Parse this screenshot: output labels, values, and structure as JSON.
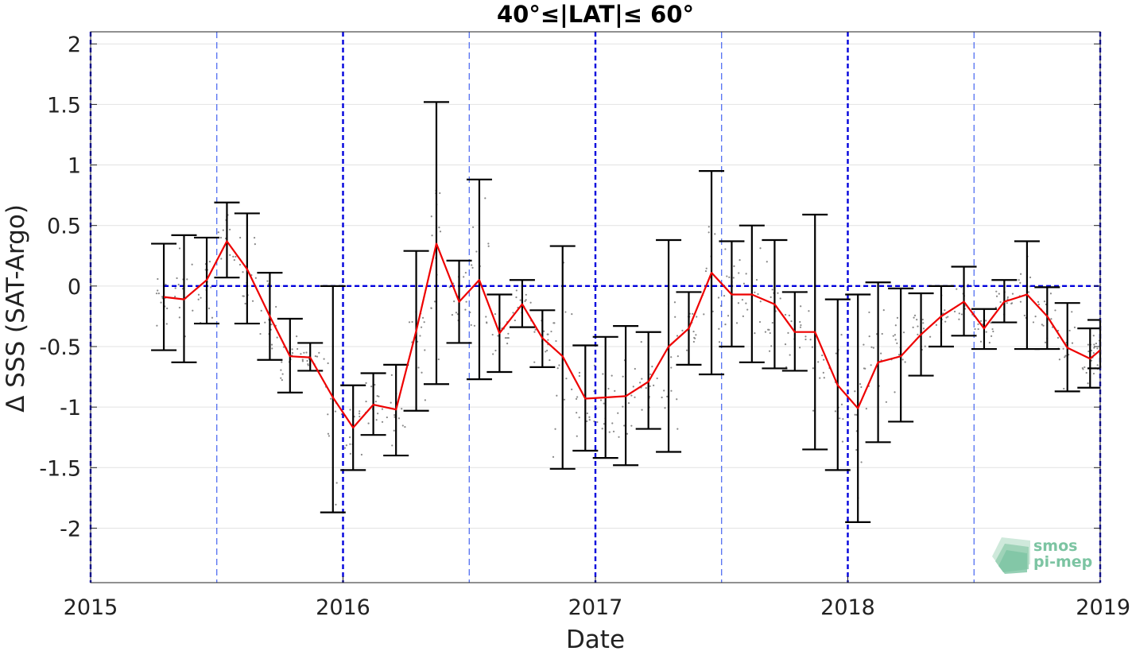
{
  "chart_data": {
    "type": "line",
    "title": "40°≤|LAT|≤ 60°",
    "xlabel": "Date",
    "ylabel": "Δ SSS (SAT-Argo)",
    "xlim": [
      2015.0,
      2019.0
    ],
    "ylim": [
      -2.45,
      2.1
    ],
    "x_ticks": [
      2015,
      2016,
      2017,
      2018,
      2019
    ],
    "x_tick_labels": [
      "2015",
      "2016",
      "2017",
      "2018",
      "2019"
    ],
    "y_ticks": [
      -2,
      -1.5,
      -1,
      -0.5,
      0,
      0.5,
      1,
      1.5,
      2
    ],
    "y_tick_labels": [
      "-2",
      "-1.5",
      "-1",
      "-0.5",
      "0",
      "0.5",
      "1",
      "1.5",
      "2"
    ],
    "grid": "horizontal",
    "reference_line": {
      "y": 0,
      "color": "#0000dd",
      "style": "dashed"
    },
    "year_lines": {
      "major": [
        2015,
        2016,
        2017,
        2018,
        2019
      ],
      "minor": [
        2015.5,
        2016.5,
        2017.5,
        2018.5
      ],
      "color": "#0000dd"
    },
    "series": [
      {
        "color": "#ee0000",
        "x": [
          2015.29,
          2015.37,
          2015.46,
          2015.54,
          2015.62,
          2015.71,
          2015.79,
          2015.87,
          2015.96,
          2016.04,
          2016.12,
          2016.21,
          2016.29,
          2016.37,
          2016.46,
          2016.54,
          2016.62,
          2016.71,
          2016.79,
          2016.87,
          2016.96,
          2017.04,
          2017.12,
          2017.21,
          2017.29,
          2017.37,
          2017.46,
          2017.54,
          2017.62,
          2017.71,
          2017.79,
          2017.87,
          2017.96,
          2018.04,
          2018.12,
          2018.21,
          2018.29,
          2018.37,
          2018.46,
          2018.54,
          2018.62,
          2018.71,
          2018.79,
          2018.87,
          2018.96,
          2019.0
        ],
        "values": [
          -0.09,
          -0.11,
          0.05,
          0.37,
          0.14,
          -0.25,
          -0.58,
          -0.59,
          -0.92,
          -1.17,
          -0.98,
          -1.02,
          -0.37,
          0.35,
          -0.13,
          0.05,
          -0.39,
          -0.15,
          -0.43,
          -0.58,
          -0.93,
          -0.92,
          -0.91,
          -0.79,
          -0.5,
          -0.35,
          0.11,
          -0.07,
          -0.07,
          -0.15,
          -0.38,
          -0.38,
          -0.82,
          -1.01,
          -0.63,
          -0.58,
          -0.4,
          -0.25,
          -0.13,
          -0.35,
          -0.13,
          -0.07,
          -0.25,
          -0.51,
          -0.6,
          -0.53
        ],
        "error_low": [
          -0.53,
          -0.63,
          -0.31,
          0.07,
          -0.31,
          -0.61,
          -0.88,
          -0.7,
          -1.87,
          -1.52,
          -1.23,
          -1.4,
          -1.03,
          -0.81,
          -0.47,
          -0.77,
          -0.71,
          -0.34,
          -0.67,
          -1.51,
          -1.36,
          -1.42,
          -1.48,
          -1.18,
          -1.37,
          -0.65,
          -0.73,
          -0.5,
          -0.63,
          -0.68,
          -0.7,
          -1.35,
          -1.52,
          -1.95,
          -1.29,
          -1.12,
          -0.74,
          -0.5,
          -0.41,
          -0.52,
          -0.3,
          -0.52,
          -0.52,
          -0.87,
          -0.84,
          -0.68
        ],
        "error_high": [
          0.35,
          0.42,
          0.4,
          0.69,
          0.6,
          0.11,
          -0.27,
          -0.47,
          0.0,
          -0.82,
          -0.72,
          -0.65,
          0.29,
          1.52,
          0.21,
          0.88,
          -0.07,
          0.05,
          -0.2,
          0.33,
          -0.49,
          -0.42,
          -0.33,
          -0.38,
          0.38,
          -0.05,
          0.95,
          0.37,
          0.5,
          0.38,
          -0.05,
          0.59,
          -0.11,
          -0.07,
          0.03,
          -0.02,
          -0.06,
          0.0,
          0.16,
          -0.19,
          0.05,
          0.37,
          -0.01,
          -0.14,
          -0.35,
          -0.28
        ]
      }
    ],
    "scatter_color": "#888888"
  },
  "logo": {
    "line1": "smos",
    "line2": "pi-mep"
  }
}
